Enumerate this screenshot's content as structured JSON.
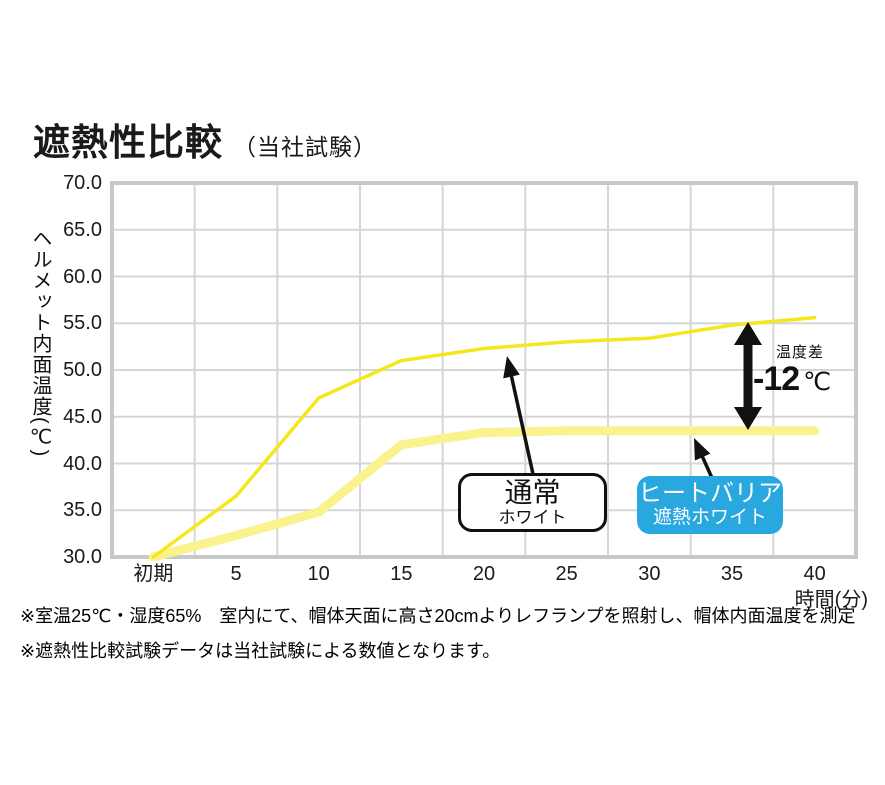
{
  "header": {
    "title": "遮熱性比較",
    "subtitle": "（当社試験）"
  },
  "chart_data": {
    "type": "line",
    "title": "遮熱性比較",
    "subtitle": "（当社試験）",
    "categories": [
      "初期",
      "5",
      "10",
      "15",
      "20",
      "25",
      "30",
      "35",
      "40"
    ],
    "xlabel": "時間(分)",
    "ylabel": "ヘルメット内面温度(℃)",
    "ylim": [
      30,
      70
    ],
    "y_ticks": [
      "70.0",
      "65.0",
      "60.0",
      "55.0",
      "50.0",
      "45.0",
      "40.0",
      "35.0",
      "30.0"
    ],
    "grid": true,
    "legend_position": "callouts-on-plot",
    "series": [
      {
        "name": "通常ホワイト",
        "values": [
          30.0,
          36.5,
          47.0,
          51.0,
          52.3,
          53.0,
          53.4,
          54.8,
          55.6
        ],
        "color": "#f6e71c",
        "style": "thin"
      },
      {
        "name": "ヒートバリア遮熱ホワイト",
        "values": [
          30.0,
          32.3,
          34.8,
          42.0,
          43.3,
          43.5,
          43.5,
          43.5,
          43.5
        ],
        "color": "#faf28c",
        "style": "thick"
      }
    ],
    "annotation": {
      "label": "温度差",
      "value": "-12",
      "unit": "℃"
    }
  },
  "callouts": {
    "normal": {
      "line1": "通常",
      "line2": "ホワイト"
    },
    "barrier": {
      "line1": "ヒートバリア",
      "line2": "遮熱ホワイト"
    }
  },
  "footnotes": [
    "※室温25℃・湿度65%　室内にて、帽体天面に高さ20cmよりレフランプを照射し、帽体内面温度を測定",
    "※遮熱性比較試験データは当社試験による数値となります。"
  ],
  "colors": {
    "normal_line": "#f6e71c",
    "barrier_line": "#faf28c",
    "barrier_box": "#29a8e0",
    "grid": "#d6d6d6",
    "frame": "#c8c8c8",
    "arrow": "#111111",
    "text": "#1a1a1a"
  }
}
